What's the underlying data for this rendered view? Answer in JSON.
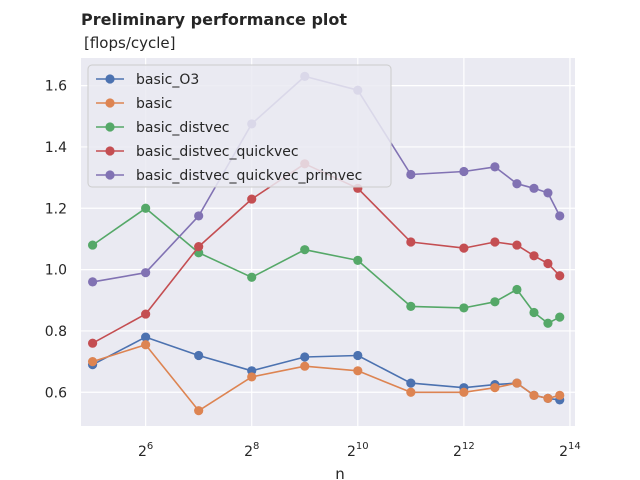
{
  "chart_data": {
    "type": "line",
    "title": "Preliminary performance plot",
    "subtitle": " [flops/cycle]",
    "xlabel": "n",
    "ylabel": "",
    "x_scale": "log2",
    "x": [
      32,
      64,
      128,
      256,
      512,
      1024,
      2048,
      4096,
      6144,
      8192,
      10240,
      12288,
      14336
    ],
    "xlim": [
      27.5,
      17500
    ],
    "ylim": [
      0.49,
      1.69
    ],
    "x_ticks": [
      {
        "value": 64,
        "base": "2",
        "exp": "6"
      },
      {
        "value": 256,
        "base": "2",
        "exp": "8"
      },
      {
        "value": 1024,
        "base": "2",
        "exp": "10"
      },
      {
        "value": 4096,
        "base": "2",
        "exp": "12"
      },
      {
        "value": 16384,
        "base": "2",
        "exp": "14"
      }
    ],
    "y_ticks": [
      {
        "value": 0.6,
        "label": "0.6"
      },
      {
        "value": 0.8,
        "label": "0.8"
      },
      {
        "value": 1.0,
        "label": "1.0"
      },
      {
        "value": 1.2,
        "label": "1.2"
      },
      {
        "value": 1.4,
        "label": "1.4"
      },
      {
        "value": 1.6,
        "label": "1.6"
      }
    ],
    "grid": true,
    "legend_position": "top-left",
    "series": [
      {
        "name": "basic_O3",
        "color": "#4c72b0",
        "values": [
          0.69,
          0.78,
          0.72,
          0.67,
          0.715,
          0.72,
          0.63,
          0.615,
          0.625,
          0.63,
          0.59,
          0.58,
          0.575
        ]
      },
      {
        "name": "basic",
        "color": "#dd8452",
        "values": [
          0.7,
          0.755,
          0.54,
          0.65,
          0.685,
          0.67,
          0.6,
          0.6,
          0.615,
          0.63,
          0.59,
          0.58,
          0.59
        ]
      },
      {
        "name": "basic_distvec",
        "color": "#55a868",
        "values": [
          1.08,
          1.2,
          1.055,
          0.975,
          1.065,
          1.03,
          0.88,
          0.875,
          0.895,
          0.935,
          0.86,
          0.825,
          0.845
        ]
      },
      {
        "name": "basic_distvec_quickvec",
        "color": "#c44e52",
        "values": [
          0.76,
          0.855,
          1.075,
          1.23,
          1.345,
          1.265,
          1.09,
          1.07,
          1.09,
          1.08,
          1.045,
          1.02,
          0.98
        ]
      },
      {
        "name": "basic_distvec_quickvec_primvec",
        "color": "#8172b3",
        "values": [
          0.96,
          0.99,
          1.175,
          1.475,
          1.63,
          1.585,
          1.31,
          1.32,
          1.335,
          1.28,
          1.265,
          1.25,
          1.175
        ]
      }
    ]
  }
}
